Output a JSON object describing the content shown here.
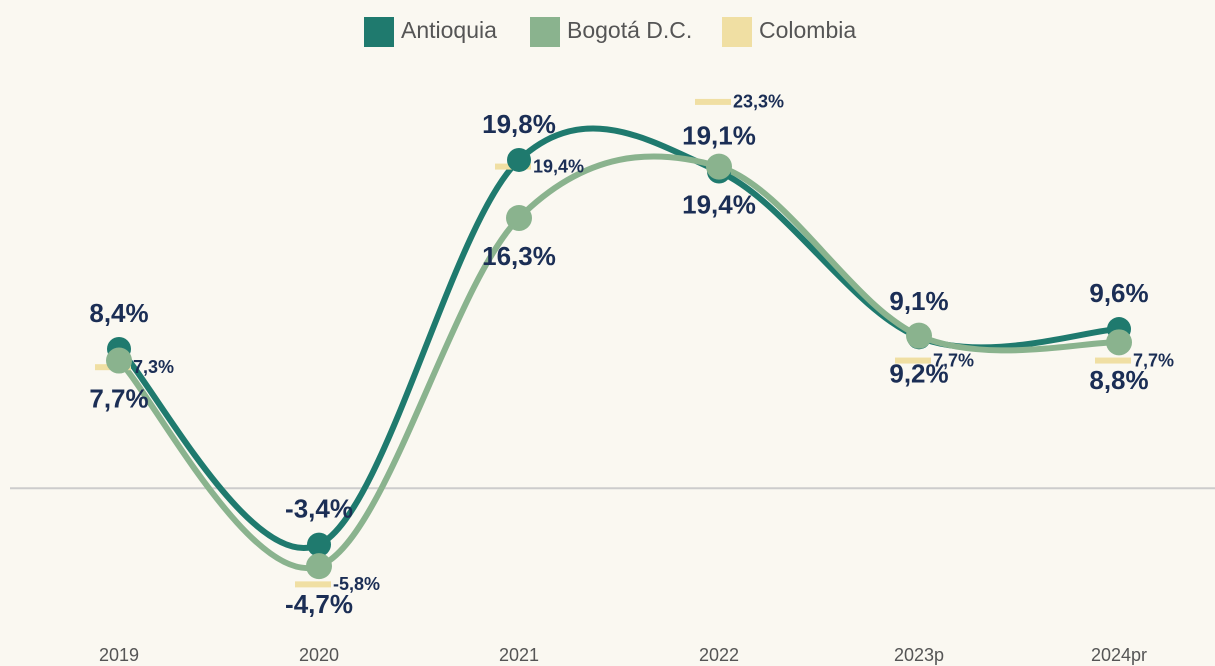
{
  "chart_data": {
    "type": "line",
    "categories": [
      "2019",
      "2020",
      "2021",
      "2022",
      "2023p",
      "2024pr"
    ],
    "series": [
      {
        "name": "Antioquia",
        "color": "#1f7a6e",
        "values": [
          8.4,
          -3.4,
          19.8,
          19.1,
          9.1,
          9.6
        ],
        "value_labels": [
          "8,4%",
          "-3,4%",
          "19,8%",
          "19,1%",
          "9,1%",
          "9,6%"
        ]
      },
      {
        "name": "Bogotá D.C.",
        "color": "#8ab38e",
        "values": [
          7.7,
          -4.7,
          16.3,
          19.4,
          9.2,
          8.8
        ],
        "value_labels": [
          "7,7%",
          "-4,7%",
          "16,3%",
          "19,4%",
          "9,2%",
          "8,8%"
        ]
      },
      {
        "name": "Colombia",
        "color": "#f0dfa3",
        "values": [
          7.3,
          -5.8,
          19.4,
          23.3,
          7.7,
          7.7
        ],
        "value_labels": [
          "7,3%",
          "-5,8%",
          "19,4%",
          "23,3%",
          "7,7%",
          "7,7%"
        ]
      }
    ],
    "ylim": [
      -10,
      28
    ]
  }
}
